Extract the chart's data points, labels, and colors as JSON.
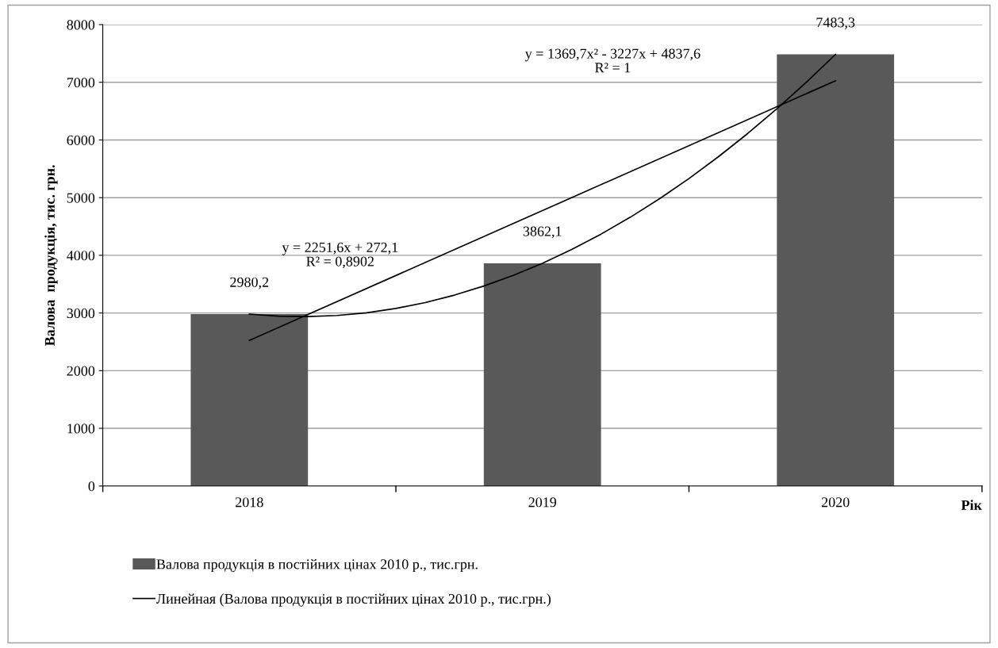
{
  "chart_data": {
    "type": "bar",
    "xlabel": "Рік",
    "ylabel": "Валова  продукція, тис. грн.",
    "x": [
      2018,
      2019,
      2020
    ],
    "series": [
      {
        "name": "Валова продукція в постійних цінах 2010 р., тис.грн.",
        "color": "#595959",
        "values": [
          2980.2,
          3862.1,
          7483.3
        ],
        "value_labels": [
          "2980,2",
          "3862,1",
          "7483,3"
        ]
      },
      {
        "name": "Линейная (Валова продукція в постійних цінах 2010 р., тис.грн.)",
        "type": "line",
        "color": "#000000",
        "x": [
          2018,
          2019,
          2020
        ],
        "values": [
          2524,
          4775,
          7027
        ]
      },
      {
        "type": "line",
        "color": "#000000",
        "x": [
          2018,
          2018.1,
          2018.2,
          2018.3,
          2018.4,
          2018.5,
          2018.6,
          2018.7,
          2018.8,
          2018.9,
          2019,
          2019.1,
          2019.2,
          2019.3,
          2019.4,
          2019.5,
          2019.6,
          2019.7,
          2019.8,
          2019.9,
          2020
        ],
        "values": [
          2980,
          2945,
          2938,
          2957,
          3004,
          3079,
          3181,
          3310,
          3467,
          3651,
          3862,
          4101,
          4368,
          4661,
          4982,
          5331,
          5707,
          6110,
          6541,
          6999,
          7484
        ]
      }
    ],
    "xlim": [
      2017.5,
      2020.5
    ],
    "xticks": [
      2018,
      2019,
      2020
    ],
    "ylim": [
      0,
      8000
    ],
    "yticks": [
      0,
      1000,
      2000,
      3000,
      4000,
      5000,
      6000,
      7000,
      8000
    ],
    "grid": "y",
    "legend": "bottom",
    "annotations": [
      "y = 2251,6x + 272,1\nR² = 0,8902",
      "y = 1369,7x² - 3227x + 4837,6\nR² = 1"
    ]
  }
}
